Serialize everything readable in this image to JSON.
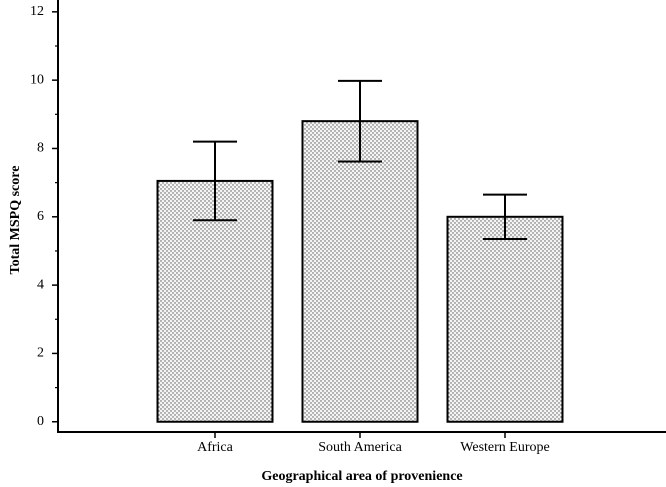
{
  "chart_data": {
    "type": "bar",
    "y_label": "Total MSPQ score",
    "x_label": "Geographical area of provenience",
    "categories": [
      "Africa",
      "South America",
      "Western Europe"
    ],
    "values": [
      7.05,
      8.8,
      6.0
    ],
    "errors": [
      1.15,
      1.18,
      0.65
    ],
    "color": "#e8e8e8",
    "ylim": [
      -0.3,
      12.2
    ],
    "yticks": [
      0,
      2,
      4,
      6,
      8,
      10,
      12
    ],
    "yminor_ticks": [
      1,
      3,
      5,
      7,
      9,
      11
    ]
  }
}
